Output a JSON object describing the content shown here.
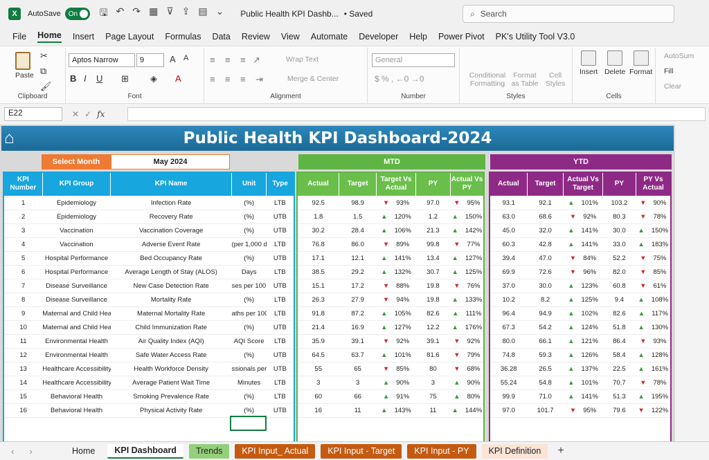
{
  "app": {
    "autosave_label": "AutoSave",
    "autosave_state": "On",
    "doc_title": "Public Health KPI Dashb...",
    "saved_status": "• Saved",
    "search_placeholder": "Search"
  },
  "menu": [
    "File",
    "Home",
    "Insert",
    "Page Layout",
    "Formulas",
    "Data",
    "Review",
    "View",
    "Automate",
    "Developer",
    "Help",
    "Power Pivot",
    "PK's Utility Tool V3.0"
  ],
  "ribbon": {
    "clipboard": {
      "paste": "Paste",
      "label": "Clipboard"
    },
    "font": {
      "name": "Aptos Narrow",
      "size": "9",
      "label": "Font"
    },
    "alignment": {
      "wrap": "Wrap Text",
      "merge": "Merge & Center",
      "label": "Alignment"
    },
    "number": {
      "format": "General",
      "label": "Number"
    },
    "styles": {
      "cond": "Conditional Formatting",
      "table": "Format as Table",
      "cell": "Cell Styles",
      "label": "Styles"
    },
    "cells": {
      "insert": "Insert",
      "delete": "Delete",
      "format": "Format",
      "label": "Cells"
    },
    "editing": {
      "autosum": "AutoSum",
      "fill": "Fill",
      "clear": "Clear"
    }
  },
  "formula_bar": {
    "cell_ref": "E22",
    "fx": "fx"
  },
  "dashboard": {
    "title": "Public Health KPI Dashboard-2024",
    "select_month_label": "Select Month",
    "select_month_value": "May 2024",
    "mtd_label": "MTD",
    "ytd_label": "YTD",
    "left_headers": [
      "KPI Number",
      "KPI Group",
      "KPI Name",
      "Unit",
      "Type"
    ],
    "mtd_headers": [
      "Actual",
      "Target",
      "Target Vs Actual",
      "PY",
      "Actual Vs PY"
    ],
    "ytd_headers": [
      "Actual",
      "Target",
      "Actual Vs Target",
      "PY",
      "PY Vs Actual"
    ],
    "colors": {
      "header": "#1c6a97",
      "left": "#17a6de",
      "mtd": "#6abf4b",
      "ytd": "#8e2a86",
      "select": "#ee7a33",
      "up": "#3a9a3a",
      "down": "#d0282a"
    },
    "rows": [
      {
        "n": "1",
        "group": "Epidemiology",
        "name": "Infection Rate",
        "unit": "(%)",
        "type": "LTB",
        "ma": "92.5",
        "mt": "98.9",
        "mtva": "93%",
        "mtva_dir": "down",
        "mpy": "97.0",
        "mavp": "95%",
        "mavp_dir": "down",
        "ya": "93.1",
        "yt": "92.1",
        "yavt": "101%",
        "yavt_dir": "up",
        "ypy": "103.2",
        "ypva": "90%",
        "ypva_dir": "down"
      },
      {
        "n": "2",
        "group": "Epidemiology",
        "name": "Recovery Rate",
        "unit": "(%)",
        "type": "UTB",
        "ma": "1.8",
        "mt": "1.5",
        "mtva": "120%",
        "mtva_dir": "up",
        "mpy": "1.2",
        "mavp": "150%",
        "mavp_dir": "up",
        "ya": "63.0",
        "yt": "68.6",
        "yavt": "92%",
        "yavt_dir": "down",
        "ypy": "80.3",
        "ypva": "78%",
        "ypva_dir": "down"
      },
      {
        "n": "3",
        "group": "Vaccination",
        "name": "Vaccination Coverage",
        "unit": "(%)",
        "type": "UTB",
        "ma": "30.2",
        "mt": "28.4",
        "mtva": "106%",
        "mtva_dir": "up",
        "mpy": "21.3",
        "mavp": "142%",
        "mavp_dir": "up",
        "ya": "45.0",
        "yt": "32.0",
        "yavt": "141%",
        "yavt_dir": "up",
        "ypy": "30.0",
        "ypva": "150%",
        "ypva_dir": "up"
      },
      {
        "n": "4",
        "group": "Vaccination",
        "name": "Adverse Event Rate",
        "unit": "(per 1,000 do",
        "type": "LTB",
        "ma": "76.8",
        "mt": "86.0",
        "mtva": "89%",
        "mtva_dir": "down",
        "mpy": "99.8",
        "mavp": "77%",
        "mavp_dir": "down",
        "ya": "60.3",
        "yt": "42.8",
        "yavt": "141%",
        "yavt_dir": "up",
        "ypy": "33.0",
        "ypva": "183%",
        "ypva_dir": "up"
      },
      {
        "n": "5",
        "group": "Hospital Performance",
        "name": "Bed Occupancy Rate",
        "unit": "(%)",
        "type": "UTB",
        "ma": "17.1",
        "mt": "12.1",
        "mtva": "141%",
        "mtva_dir": "up",
        "mpy": "13.4",
        "mavp": "127%",
        "mavp_dir": "up",
        "ya": "39.4",
        "yt": "47.0",
        "yavt": "84%",
        "yavt_dir": "down",
        "ypy": "52.2",
        "ypva": "75%",
        "ypva_dir": "down"
      },
      {
        "n": "6",
        "group": "Hospital Performance",
        "name": "Average Length of Stay (ALOS)",
        "unit": "Days",
        "type": "LTB",
        "ma": "38.5",
        "mt": "29.2",
        "mtva": "132%",
        "mtva_dir": "up",
        "mpy": "30.7",
        "mavp": "125%",
        "mavp_dir": "up",
        "ya": "69.9",
        "yt": "72.6",
        "yavt": "96%",
        "yavt_dir": "down",
        "ypy": "82.0",
        "ypva": "85%",
        "ypva_dir": "down"
      },
      {
        "n": "7",
        "group": "Disease Surveillance",
        "name": "New Case Detection Rate",
        "unit": "ses per 100,0",
        "type": "UTB",
        "ma": "15.1",
        "mt": "17.2",
        "mtva": "88%",
        "mtva_dir": "down",
        "mpy": "19.8",
        "mavp": "76%",
        "mavp_dir": "down",
        "ya": "37.0",
        "yt": "30.0",
        "yavt": "123%",
        "yavt_dir": "up",
        "ypy": "60.8",
        "ypva": "61%",
        "ypva_dir": "down"
      },
      {
        "n": "8",
        "group": "Disease Surveillance",
        "name": "Mortality Rate",
        "unit": "(%)",
        "type": "LTB",
        "ma": "26.3",
        "mt": "27.9",
        "mtva": "94%",
        "mtva_dir": "down",
        "mpy": "19.8",
        "mavp": "133%",
        "mavp_dir": "up",
        "ya": "10.2",
        "yt": "8.2",
        "yavt": "125%",
        "yavt_dir": "up",
        "ypy": "9.4",
        "ypva": "108%",
        "ypva_dir": "up"
      },
      {
        "n": "9",
        "group": "Maternal and Child Healt",
        "name": "Maternal Mortality Rate",
        "unit": "aths per 100,",
        "type": "LTB",
        "ma": "91.8",
        "mt": "87.2",
        "mtva": "105%",
        "mtva_dir": "up",
        "mpy": "82.6",
        "mavp": "111%",
        "mavp_dir": "up",
        "ya": "96.4",
        "yt": "94.9",
        "yavt": "102%",
        "yavt_dir": "up",
        "ypy": "82.6",
        "ypva": "117%",
        "ypva_dir": "up"
      },
      {
        "n": "10",
        "group": "Maternal and Child Healt",
        "name": "Child Immunization Rate",
        "unit": "(%)",
        "type": "UTB",
        "ma": "21.4",
        "mt": "16.9",
        "mtva": "127%",
        "mtva_dir": "up",
        "mpy": "12.2",
        "mavp": "176%",
        "mavp_dir": "up",
        "ya": "67.3",
        "yt": "54.2",
        "yavt": "124%",
        "yavt_dir": "up",
        "ypy": "51.8",
        "ypva": "130%",
        "ypva_dir": "up"
      },
      {
        "n": "11",
        "group": "Environmental Health",
        "name": "Air Quality Index (AQI)",
        "unit": "AQI Score",
        "type": "LTB",
        "ma": "35.9",
        "mt": "39.1",
        "mtva": "92%",
        "mtva_dir": "down",
        "mpy": "39.1",
        "mavp": "92%",
        "mavp_dir": "down",
        "ya": "80.0",
        "yt": "66.1",
        "yavt": "121%",
        "yavt_dir": "up",
        "ypy": "86.4",
        "ypva": "93%",
        "ypva_dir": "down"
      },
      {
        "n": "12",
        "group": "Environmental Health",
        "name": "Safe Water Access Rate",
        "unit": "(%)",
        "type": "UTB",
        "ma": "64.5",
        "mt": "63.7",
        "mtva": "101%",
        "mtva_dir": "up",
        "mpy": "81.6",
        "mavp": "79%",
        "mavp_dir": "down",
        "ya": "74.8",
        "yt": "59.3",
        "yavt": "126%",
        "yavt_dir": "up",
        "ypy": "58.4",
        "ypva": "128%",
        "ypva_dir": "up"
      },
      {
        "n": "13",
        "group": "Healthcare Accessibility",
        "name": "Health Workforce Density",
        "unit": "ssionals per",
        "type": "UTB",
        "ma": "55",
        "mt": "65",
        "mtva": "85%",
        "mtva_dir": "down",
        "mpy": "80",
        "mavp": "68%",
        "mavp_dir": "down",
        "ya": "36.28",
        "yt": "26.5",
        "yavt": "137%",
        "yavt_dir": "up",
        "ypy": "22.5",
        "ypva": "161%",
        "ypva_dir": "up"
      },
      {
        "n": "14",
        "group": "Healthcare Accessibility",
        "name": "Average Patient Wait Time",
        "unit": "Minutes",
        "type": "LTB",
        "ma": "3",
        "mt": "3",
        "mtva": "90%",
        "mtva_dir": "up",
        "mpy": "3",
        "mavp": "90%",
        "mavp_dir": "up",
        "ya": "55.24",
        "yt": "54.8",
        "yavt": "101%",
        "yavt_dir": "up",
        "ypy": "70.7",
        "ypva": "78%",
        "ypva_dir": "down"
      },
      {
        "n": "15",
        "group": "Behavioral Health",
        "name": "Smoking Prevalence Rate",
        "unit": "(%)",
        "type": "LTB",
        "ma": "60",
        "mt": "66",
        "mtva": "91%",
        "mtva_dir": "up",
        "mpy": "75",
        "mavp": "80%",
        "mavp_dir": "up",
        "ya": "99.9",
        "yt": "71.0",
        "yavt": "141%",
        "yavt_dir": "up",
        "ypy": "51.3",
        "ypva": "195%",
        "ypva_dir": "up"
      },
      {
        "n": "16",
        "group": "Behavioral Health",
        "name": "Physical Activity Rate",
        "unit": "(%)",
        "type": "UTB",
        "ma": "16",
        "mt": "11",
        "mtva": "143%",
        "mtva_dir": "up",
        "mpy": "11",
        "mavp": "144%",
        "mavp_dir": "up",
        "ya": "97.0",
        "yt": "101.7",
        "yavt": "95%",
        "yavt_dir": "down",
        "ypy": "79.6",
        "ypva": "122%",
        "ypva_dir": "down"
      }
    ]
  },
  "sheet_tabs": [
    {
      "label": "Home",
      "style": "plain"
    },
    {
      "label": "KPI Dashboard",
      "style": "active"
    },
    {
      "label": "Trends",
      "style": "green"
    },
    {
      "label": "KPI Input_ Actual",
      "style": "orange"
    },
    {
      "label": "KPI Input - Target",
      "style": "orange"
    },
    {
      "label": "KPI Input - PY",
      "style": "orange"
    },
    {
      "label": "KPI Definition",
      "style": "peach"
    }
  ]
}
